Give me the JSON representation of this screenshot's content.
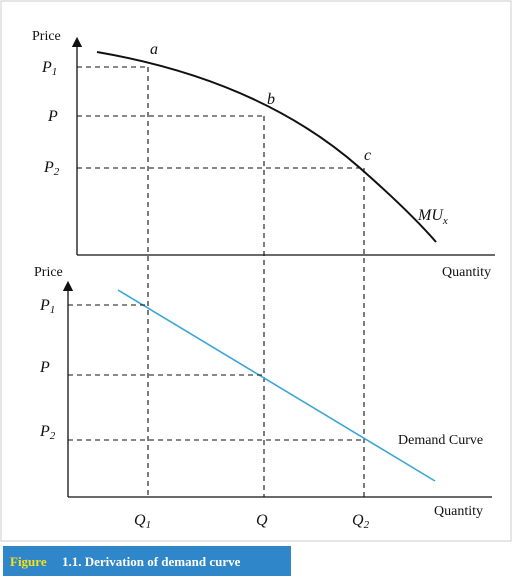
{
  "top_panel": {
    "y_label": "Price",
    "x_label": "Quantity",
    "y_ticks": [
      {
        "main": "P",
        "sub": "1"
      },
      {
        "main": "P"
      },
      {
        "main": "P",
        "sub": "2"
      }
    ],
    "points": [
      "a",
      "b",
      "c"
    ],
    "curve_label": {
      "main": "MU",
      "sub": "x"
    }
  },
  "bottom_panel": {
    "y_label": "Price",
    "x_label": "Quantity",
    "y_ticks": [
      {
        "main": "P",
        "sub": "1"
      },
      {
        "main": "P"
      },
      {
        "main": "P",
        "sub": "2"
      }
    ],
    "x_ticks": [
      {
        "main": "Q",
        "sub": "1"
      },
      {
        "main": "Q"
      },
      {
        "main": "Q",
        "sub": "2"
      }
    ],
    "curve_label": "Demand Curve"
  },
  "caption": {
    "label": "Figure",
    "text": "1.1. Derivation of demand curve"
  }
}
